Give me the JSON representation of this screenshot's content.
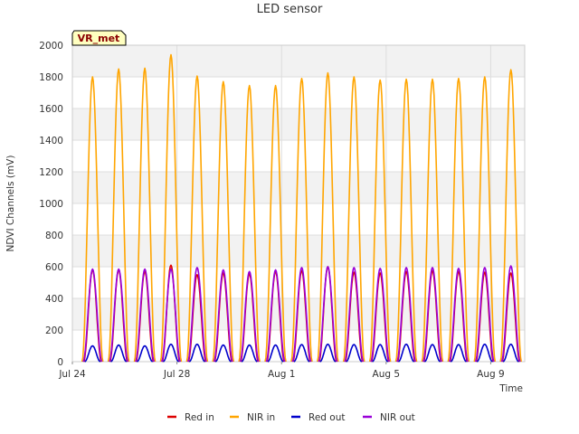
{
  "chart_data": {
    "type": "line",
    "title": "LED sensor",
    "xlabel": "Time",
    "ylabel": "NDVI Channels (mV)",
    "ylim": [
      0,
      2000
    ],
    "yticks": [
      0,
      200,
      400,
      600,
      800,
      1000,
      1200,
      1400,
      1600,
      1800,
      2000
    ],
    "xlim": [
      0,
      17.3
    ],
    "xticks": [
      {
        "value": 0,
        "label": "Jul 24"
      },
      {
        "value": 4,
        "label": "Jul 28"
      },
      {
        "value": 8,
        "label": "Aug 1"
      },
      {
        "value": 12,
        "label": "Aug 5"
      },
      {
        "value": 16,
        "label": "Aug 9"
      }
    ],
    "day_offsets": [
      0.77,
      1.77,
      2.77,
      3.77,
      4.77,
      5.77,
      6.77,
      7.77,
      8.77,
      9.77,
      10.77,
      11.77,
      12.77,
      13.77,
      14.77,
      15.77,
      16.77
    ],
    "grid": true,
    "legend_position": "bottom",
    "badge": "VR_met",
    "series": [
      {
        "name": "Red in",
        "color": "#dd0000",
        "width": 0.34,
        "values": [
          580,
          580,
          570,
          610,
          550,
          560,
          555,
          570,
          575,
          600,
          565,
          560,
          570,
          575,
          570,
          565,
          560
        ]
      },
      {
        "name": "NIR in",
        "color": "#ffa500",
        "width": 0.4,
        "values": [
          1800,
          1850,
          1855,
          1940,
          1805,
          1770,
          1745,
          1745,
          1790,
          1825,
          1800,
          1780,
          1785,
          1785,
          1790,
          1800,
          1845
        ]
      },
      {
        "name": "Red out",
        "color": "#0000cc",
        "width": 0.3,
        "values": [
          100,
          105,
          100,
          110,
          110,
          105,
          105,
          105,
          108,
          110,
          108,
          108,
          110,
          108,
          108,
          110,
          110
        ]
      },
      {
        "name": "NIR out",
        "color": "#9a00d8",
        "width": 0.36,
        "values": [
          585,
          585,
          585,
          585,
          595,
          580,
          570,
          580,
          595,
          600,
          595,
          590,
          595,
          595,
          590,
          595,
          605
        ]
      }
    ]
  },
  "colors": {
    "plot_band": "#f2f2f2",
    "grid": "#dddddd",
    "badge_fill": "#ffffc0",
    "badge_text": "#8b0000"
  }
}
